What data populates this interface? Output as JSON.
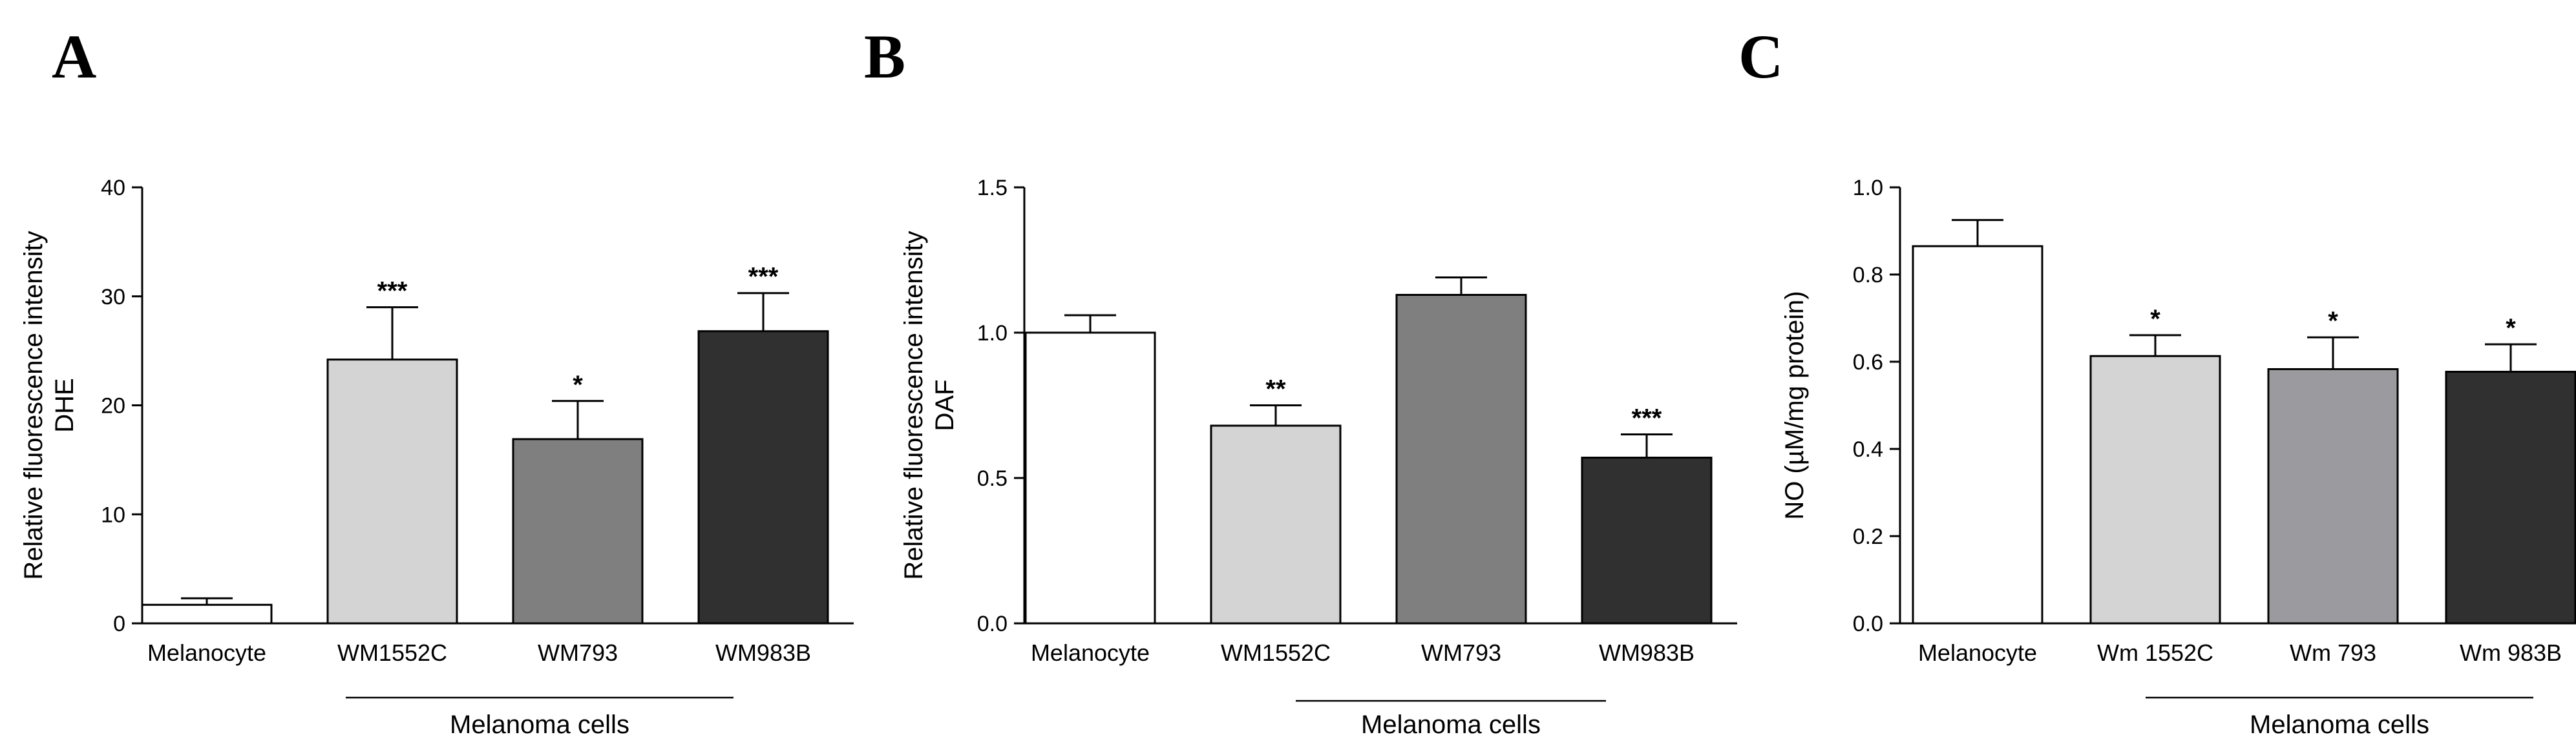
{
  "chart_data": [
    {
      "panel": "A",
      "type": "bar",
      "ylabel_lines": [
        "Relative fluorescence intensity",
        "DHE"
      ],
      "categories": [
        "Melanocyte",
        "WM1552C",
        "WM793",
        "WM983B"
      ],
      "values": [
        1.7,
        24.2,
        16.9,
        26.8
      ],
      "errors": [
        0.6,
        4.8,
        3.5,
        3.5
      ],
      "colors": [
        "#ffffff",
        "#d4d4d4",
        "#7f7f7f",
        "#303030"
      ],
      "significance": [
        "",
        "***",
        "*",
        "***"
      ],
      "ylim": [
        0,
        40
      ],
      "yticks": [
        0,
        10,
        20,
        30,
        40
      ],
      "group_label": "Melanoma cells",
      "group_span": [
        1,
        3
      ]
    },
    {
      "panel": "B",
      "type": "bar",
      "ylabel_lines": [
        "Relative fluorescence intensity",
        "DAF"
      ],
      "categories": [
        "Melanocyte",
        "WM1552C",
        "WM793",
        "WM983B"
      ],
      "values": [
        1.0,
        0.68,
        1.13,
        0.57
      ],
      "errors": [
        0.06,
        0.07,
        0.06,
        0.08
      ],
      "colors": [
        "#ffffff",
        "#d4d4d4",
        "#7f7f7f",
        "#303030"
      ],
      "significance": [
        "",
        "**",
        "",
        "***"
      ],
      "ylim": [
        0,
        1.5
      ],
      "yticks": [
        "0.0",
        "0.5",
        "1.0",
        "1.5"
      ],
      "group_label": "Melanoma cells",
      "group_span": [
        1,
        3
      ]
    },
    {
      "panel": "C",
      "type": "bar",
      "ylabel_lines": [
        "NO (µM/mg protein)"
      ],
      "categories": [
        "Melanocyte",
        "Wm 1552C",
        "Wm 793",
        "Wm 983B"
      ],
      "values": [
        0.865,
        0.613,
        0.583,
        0.577
      ],
      "errors": [
        0.06,
        0.048,
        0.073,
        0.063
      ],
      "colors": [
        "#ffffff",
        "#d4d4d4",
        "#9b9b9f",
        "#303030"
      ],
      "significance": [
        "",
        "*",
        "*",
        "*"
      ],
      "ylim": [
        0,
        1.0
      ],
      "yticks": [
        "0.0",
        "0.2",
        "0.4",
        "0.6",
        "0.8",
        "1.0"
      ],
      "group_label": "Melanoma cells",
      "group_span": [
        1,
        3
      ]
    }
  ]
}
